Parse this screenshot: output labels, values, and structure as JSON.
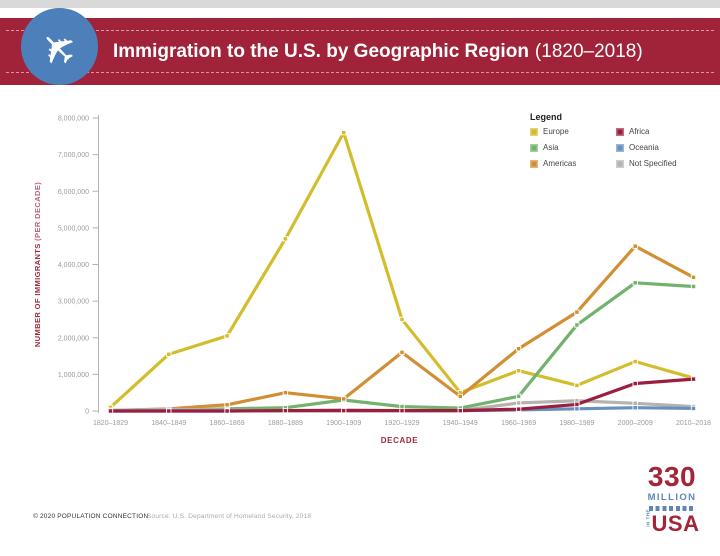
{
  "theme": {
    "banner_red": "#a02339",
    "circle_blue": "#4d80bb",
    "label_red": "#a42a3e",
    "axis_text_gray": "#9b9b9b",
    "logo_red": "#a32638",
    "logo_blue": "#5e87b8"
  },
  "header": {
    "title_main": "Immigration to the U.S. by Geographic Region",
    "title_period": "(1820–2018)",
    "icon": "airplane-icon",
    "airplane_glyph": "✈"
  },
  "chart_data": {
    "type": "line",
    "title": "",
    "xlabel": "DECADE",
    "ylabel": "NUMBER OF IMMIGRANTS (PER DECADE)",
    "ylabel_main": "NUMBER OF IMMIGRANTS",
    "ylabel_sub": "(PER DECADE)",
    "legend_title": "Legend",
    "legend_position": "top-right",
    "grid": false,
    "ylim": [
      0,
      8000000
    ],
    "y_ticks": [
      "0",
      "1,000,000",
      "2,000,000",
      "3,000,000",
      "4,000,000",
      "5,000,000",
      "6,000,000",
      "7,000,000",
      "8,000,000"
    ],
    "categories": [
      "1820–1829",
      "1840–1849",
      "1860–1869",
      "1880–1889",
      "1900–1909",
      "1920–1929",
      "1940–1949",
      "1960–1969",
      "1980–1989",
      "2000–2009",
      "2010–2018"
    ],
    "series": [
      {
        "name": "Europe",
        "color": "#d3bd2c",
        "values": [
          100000,
          1550000,
          2050000,
          4700000,
          7600000,
          2500000,
          500000,
          1100000,
          700000,
          1350000,
          900000
        ]
      },
      {
        "name": "Asia",
        "color": "#72b26d",
        "values": [
          0,
          10000,
          60000,
          90000,
          300000,
          120000,
          80000,
          400000,
          2350000,
          3500000,
          3400000
        ]
      },
      {
        "name": "Americas",
        "color": "#d28e33",
        "values": [
          10000,
          60000,
          170000,
          500000,
          330000,
          1600000,
          400000,
          1700000,
          2700000,
          4500000,
          3650000
        ]
      },
      {
        "name": "Africa",
        "color": "#9b1e3f",
        "values": [
          0,
          0,
          0,
          10000,
          10000,
          10000,
          10000,
          50000,
          180000,
          750000,
          870000
        ]
      },
      {
        "name": "Oceania",
        "color": "#6690bd",
        "values": [
          0,
          0,
          0,
          10000,
          10000,
          10000,
          10000,
          30000,
          60000,
          90000,
          70000
        ]
      },
      {
        "name": "Not Specified",
        "color": "#b5b3b0",
        "values": [
          20000,
          50000,
          20000,
          10000,
          30000,
          10000,
          10000,
          220000,
          280000,
          210000,
          120000
        ]
      }
    ],
    "draw_order": [
      0,
      1,
      2,
      5,
      4,
      3
    ]
  },
  "footer": {
    "copyright": "© 2020 POPULATION CONNECTION",
    "source": "Source: U.S. Department of Homeland Security, 2018"
  },
  "logo": {
    "number": "330",
    "million": "MILLION",
    "in_the": "IN THE",
    "usa": "USA"
  }
}
